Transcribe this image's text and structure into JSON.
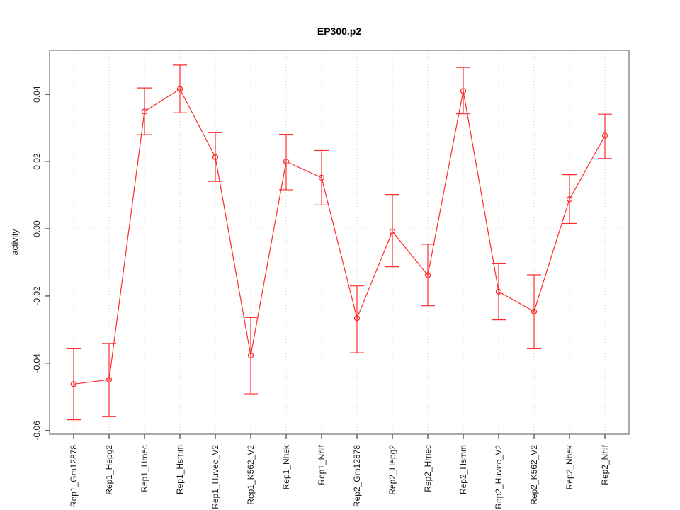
{
  "figure": {
    "title": "EP300.p2",
    "background": "#ffffff"
  },
  "chart_data": {
    "type": "line",
    "title": "EP300.p2",
    "xlabel": "",
    "ylabel": "activity",
    "categories": [
      "Rep1_Gm12878",
      "Rep1_Hepg2",
      "Rep1_Hmec",
      "Rep1_Hsmm",
      "Rep1_Huvec_V2",
      "Rep1_K562_V2",
      "Rep1_Nhek",
      "Rep1_Nhlf",
      "Rep2_Gm12878",
      "Rep2_Hepg2",
      "Rep2_Hmec",
      "Rep2_Hsmm",
      "Rep2_Huvec_V2",
      "Rep2_K562_V2",
      "Rep2_Nhek",
      "Rep2_Nhlf"
    ],
    "series": [
      {
        "name": "activity",
        "color": "#ff2b2b",
        "marker": "open-circle",
        "values": [
          -0.0462,
          -0.0449,
          0.0349,
          0.0416,
          0.0213,
          -0.0377,
          0.02,
          0.0152,
          -0.0266,
          -0.0008,
          -0.0138,
          0.041,
          -0.0187,
          -0.0246,
          0.0088,
          0.0277
        ],
        "error_low": [
          -0.0568,
          -0.0559,
          0.028,
          0.0345,
          0.0141,
          -0.0491,
          0.0116,
          0.0071,
          -0.0369,
          -0.0113,
          -0.0229,
          0.0342,
          -0.0271,
          -0.0357,
          0.0016,
          0.0209
        ],
        "error_high": [
          -0.0357,
          -0.0341,
          0.0419,
          0.0487,
          0.0286,
          -0.0264,
          0.0281,
          0.0233,
          -0.017,
          0.0102,
          -0.0046,
          0.048,
          -0.0104,
          -0.0137,
          0.0161,
          0.0341
        ]
      }
    ],
    "yticks": [
      -0.06,
      -0.04,
      -0.02,
      0,
      0.02,
      0.04
    ],
    "ytick_labels": [
      "-0.06",
      "-0.04",
      "-0.02",
      "0.00",
      "0.02",
      "0.04"
    ],
    "ylim": [
      -0.0611,
      0.0531
    ],
    "grid": {
      "vertical": "dotted",
      "horizontal_zero": "dotted"
    },
    "legend": "none"
  },
  "colors": {
    "series": "#ff2b2b",
    "box": "#8f8f8f",
    "tick": "#404040",
    "label": "#1a1a1a",
    "grid": "#d6d6d6"
  }
}
